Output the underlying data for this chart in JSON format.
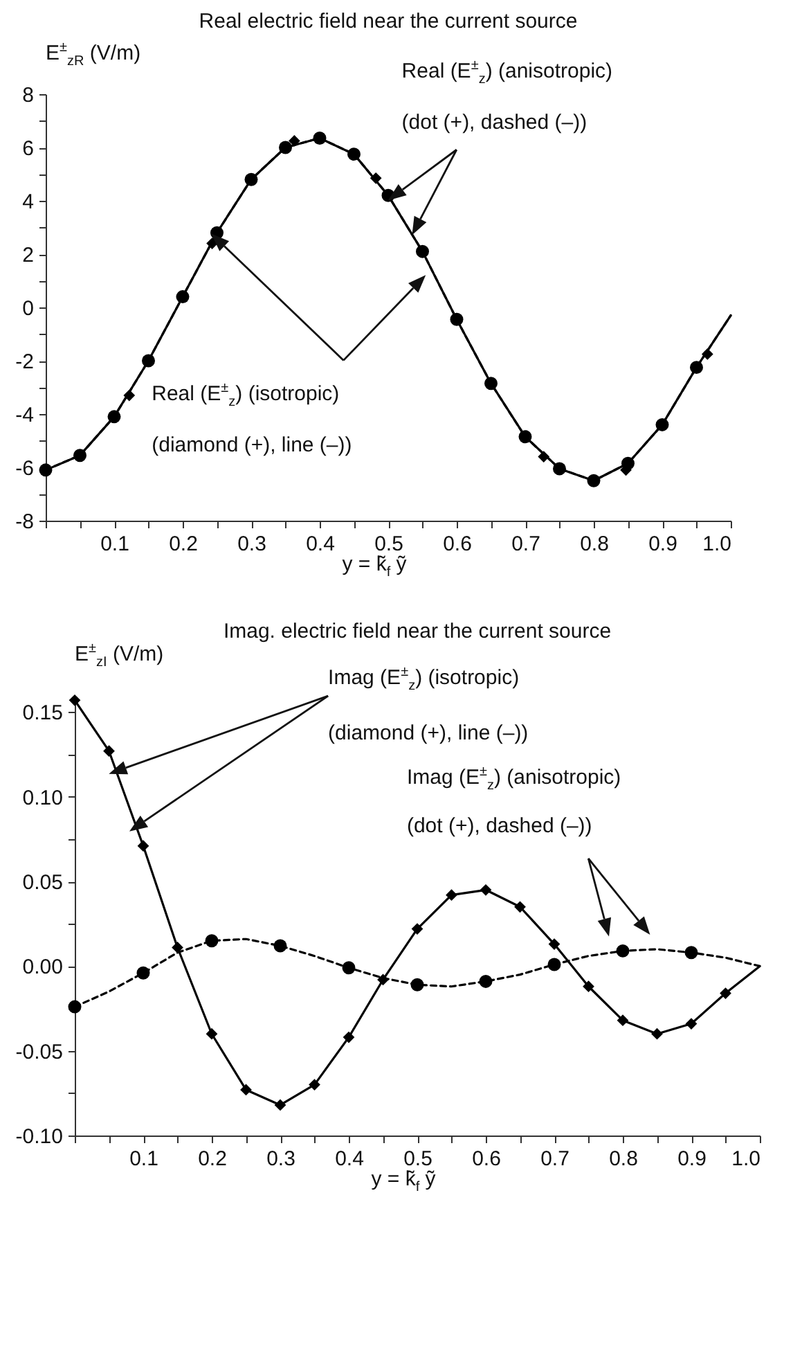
{
  "chart_data": [
    {
      "type": "line",
      "title": "Real electric field near the current source",
      "xlabel": "y = k̃$_{f}$ ỹ",
      "ylabel": "E$^{±}$$_{zR}$ (V/m)",
      "annotations": [
        "Real (E$^{±}$$_{z}$) (anisotropic)",
        "(dot (+), dashed (–))",
        "Real (E$^{±}$$_{z}$) (isotropic)",
        "(diamond (+), line (–))"
      ],
      "xlim": [
        0,
        1
      ],
      "xticks": [
        {
          "value": 0,
          "label": null
        },
        {
          "value": 0.05,
          "label": null
        },
        0.1,
        {
          "value": 0.15,
          "label": null
        },
        0.2,
        {
          "value": 0.25,
          "label": null
        },
        0.3,
        {
          "value": 0.35,
          "label": null
        },
        0.4,
        {
          "value": 0.45,
          "label": null
        },
        0.5,
        {
          "value": 0.55,
          "label": null
        },
        0.6,
        {
          "value": 0.65,
          "label": null
        },
        0.7,
        {
          "value": 0.75,
          "label": null
        },
        0.8,
        {
          "value": 0.85,
          "label": null
        },
        0.9,
        {
          "value": 0.95,
          "label": null
        },
        {
          "value": 1,
          "label": "1.0"
        }
      ],
      "ylim": [
        -8,
        8
      ],
      "yticks": [
        -8,
        {
          "value": -7,
          "label": null
        },
        -6,
        {
          "value": -5,
          "label": null
        },
        -4,
        {
          "value": -3,
          "label": null
        },
        -2,
        {
          "value": -1,
          "label": null
        },
        0,
        {
          "value": 1,
          "label": null
        },
        2,
        {
          "value": 3,
          "label": null
        },
        4,
        {
          "value": 5,
          "label": null
        },
        6,
        {
          "value": 7,
          "label": null
        },
        8
      ],
      "grid": false,
      "series": [
        {
          "type": "line",
          "color": "#000000",
          "line_style": "solid",
          "marker": "none",
          "x": [
            0,
            0.05,
            0.1,
            0.15,
            0.2,
            0.25,
            0.3,
            0.35,
            0.4,
            0.45,
            0.5,
            0.55,
            0.6,
            0.65,
            0.7,
            0.75,
            0.8,
            0.85,
            0.9,
            0.95,
            1
          ],
          "values": [
            -6.1,
            -5.55,
            -4.1,
            -2.0,
            0.4,
            2.8,
            4.8,
            6.0,
            6.35,
            5.75,
            4.2,
            2.1,
            -0.45,
            -2.85,
            -4.85,
            -6.05,
            -6.5,
            -5.85,
            -4.4,
            -2.25,
            -0.3
          ]
        },
        {
          "type": "scatter",
          "color": "#000000",
          "marker": "diamond",
          "x": [
            0.122,
            0.243,
            0.363,
            0.482,
            0.727,
            0.847,
            0.966
          ],
          "values": [
            -3.3,
            2.4,
            6.25,
            4.85,
            -5.6,
            -6.1,
            -1.75
          ]
        },
        {
          "type": "line",
          "color": "#000000",
          "line_style": "dashed",
          "marker": "none",
          "x": [
            0,
            0.05,
            0.1,
            0.15,
            0.2,
            0.25,
            0.3,
            0.35,
            0.4,
            0.45,
            0.5,
            0.55,
            0.6,
            0.65,
            0.7,
            0.75,
            0.8,
            0.85,
            0.9,
            0.95,
            1
          ],
          "values": [
            -6.1,
            -5.55,
            -4.1,
            -2.0,
            0.4,
            2.8,
            4.8,
            6.0,
            6.35,
            5.75,
            4.2,
            2.1,
            -0.45,
            -2.85,
            -4.85,
            -6.05,
            -6.5,
            -5.85,
            -4.4,
            -2.25,
            -0.3
          ]
        },
        {
          "type": "scatter",
          "color": "#000000",
          "marker": "circle",
          "x": [
            0,
            0.05,
            0.1,
            0.15,
            0.2,
            0.25,
            0.3,
            0.35,
            0.4,
            0.45,
            0.5,
            0.55,
            0.6,
            0.65,
            0.7,
            0.75,
            0.8,
            0.85,
            0.9,
            0.95
          ],
          "values": [
            -6.1,
            -5.55,
            -4.1,
            -2.0,
            0.4,
            2.8,
            4.8,
            6.0,
            6.35,
            5.75,
            4.2,
            2.1,
            -0.45,
            -2.85,
            -4.85,
            -6.05,
            -6.5,
            -5.85,
            -4.4,
            -2.25
          ]
        }
      ]
    },
    {
      "type": "line",
      "title": "Imag. electric field near the current source",
      "xlabel": "y = k̃$_{f}$ ỹ",
      "ylabel": "E$^{±}$$_{zI}$ (V/m)",
      "annotations": [
        "Imag (E$^{±}$$_{z}$) (isotropic)",
        "(diamond (+), line (–))",
        "Imag (E$^{±}$$_{z}$) (anisotropic)",
        "(dot (+), dashed (–))"
      ],
      "xlim": [
        0,
        1
      ],
      "xticks": [
        {
          "value": 0,
          "label": null
        },
        {
          "value": 0.05,
          "label": null
        },
        0.1,
        {
          "value": 0.15,
          "label": null
        },
        0.2,
        {
          "value": 0.25,
          "label": null
        },
        0.3,
        {
          "value": 0.35,
          "label": null
        },
        0.4,
        {
          "value": 0.45,
          "label": null
        },
        0.5,
        {
          "value": 0.55,
          "label": null
        },
        0.6,
        {
          "value": 0.65,
          "label": null
        },
        0.7,
        {
          "value": 0.75,
          "label": null
        },
        0.8,
        {
          "value": 0.85,
          "label": null
        },
        0.9,
        {
          "value": 0.95,
          "label": null
        },
        {
          "value": 1,
          "label": "1.0"
        }
      ],
      "ylim": [
        -0.1,
        0.16
      ],
      "yticks": [
        {
          "value": -0.1,
          "label": "-0.10"
        },
        {
          "value": -0.075,
          "label": null
        },
        {
          "value": -0.05,
          "label": "-0.05"
        },
        {
          "value": -0.025,
          "label": null
        },
        {
          "value": 0,
          "label": "0.00"
        },
        {
          "value": 0.025,
          "label": null
        },
        {
          "value": 0.05,
          "label": "0.05"
        },
        {
          "value": 0.075,
          "label": null
        },
        {
          "value": 0.1,
          "label": "0.10"
        },
        {
          "value": 0.125,
          "label": null
        },
        0.15
      ],
      "grid": false,
      "series": [
        {
          "type": "line",
          "color": "#000000",
          "line_style": "solid",
          "marker": "diamond",
          "x": [
            0,
            0.05,
            0.1,
            0.15,
            0.2,
            0.25,
            0.3,
            0.35,
            0.4,
            0.45,
            0.5,
            0.55,
            0.6,
            0.65,
            0.7,
            0.75,
            0.8,
            0.85,
            0.9,
            0.95
          ],
          "values": [
            0.157,
            0.127,
            0.071,
            0.011,
            -0.04,
            -0.073,
            -0.082,
            -0.07,
            -0.042,
            -0.008,
            0.022,
            0.042,
            0.045,
            0.035,
            0.013,
            -0.012,
            -0.032,
            -0.04,
            -0.034,
            -0.016
          ]
        },
        {
          "type": "line",
          "color": "#000000",
          "line_style": "solid",
          "marker": "none",
          "x": [
            0.95,
            1
          ],
          "values": [
            -0.016,
            0.0
          ]
        },
        {
          "type": "line",
          "color": "#000000",
          "line_style": "dashed",
          "marker": "none",
          "x": [
            0,
            0.05,
            0.1,
            0.15,
            0.2,
            0.25,
            0.3,
            0.35,
            0.4,
            0.45,
            0.5,
            0.55,
            0.6,
            0.65,
            0.7,
            0.75,
            0.8,
            0.85,
            0.9,
            0.95,
            1
          ],
          "values": [
            -0.024,
            -0.015,
            -0.004,
            0.008,
            0.015,
            0.016,
            0.012,
            0.006,
            -0.001,
            -0.007,
            -0.011,
            -0.012,
            -0.009,
            -0.005,
            0.001,
            0.006,
            0.009,
            0.01,
            0.008,
            0.005,
            0.0
          ]
        },
        {
          "type": "scatter",
          "color": "#000000",
          "marker": "circle",
          "x": [
            0,
            0.1,
            0.2,
            0.3,
            0.4,
            0.5,
            0.6,
            0.7,
            0.8,
            0.9
          ],
          "values": [
            -0.024,
            -0.004,
            0.015,
            0.012,
            -0.001,
            -0.011,
            -0.009,
            0.001,
            0.009,
            0.008
          ]
        }
      ]
    }
  ]
}
